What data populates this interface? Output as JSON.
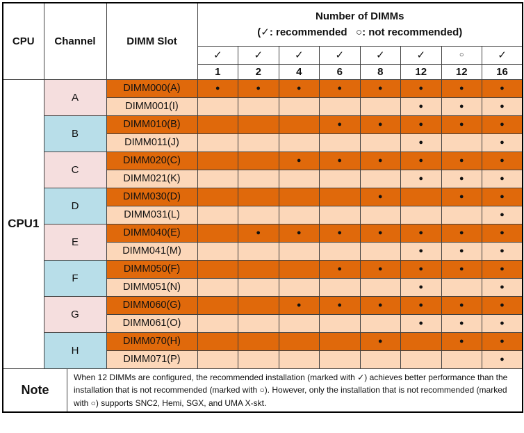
{
  "colors": {
    "dark_orange": "#E0690B",
    "light_orange": "#FCD7B9",
    "pink": "#F5DEDE",
    "blue": "#B8DEE9",
    "grid": "#404040",
    "outer_border": "#000000",
    "dot": "#111111"
  },
  "header": {
    "cpu": "CPU",
    "channel": "Channel",
    "dimm_slot": "DIMM Slot",
    "dimms_title": "Number of DIMMs",
    "dimms_subtitle": "(✓: recommended   ○: not recommended)",
    "marks": [
      "✓",
      "✓",
      "✓",
      "✓",
      "✓",
      "✓",
      "○",
      "✓"
    ],
    "counts": [
      "1",
      "2",
      "4",
      "6",
      "8",
      "12",
      "12",
      "16"
    ]
  },
  "body": {
    "cpu_label": "CPU1",
    "channels": [
      {
        "label": "A",
        "color": "pink",
        "slots": [
          {
            "name": "DIMM000(A)",
            "dots": [
              1,
              1,
              1,
              1,
              1,
              1,
              1,
              1
            ]
          },
          {
            "name": "DIMM001(I)",
            "dots": [
              0,
              0,
              0,
              0,
              0,
              1,
              1,
              1
            ]
          }
        ]
      },
      {
        "label": "B",
        "color": "blue",
        "slots": [
          {
            "name": "DIMM010(B)",
            "dots": [
              0,
              0,
              0,
              1,
              1,
              1,
              1,
              1
            ]
          },
          {
            "name": "DIMM011(J)",
            "dots": [
              0,
              0,
              0,
              0,
              0,
              1,
              0,
              1
            ]
          }
        ]
      },
      {
        "label": "C",
        "color": "pink",
        "slots": [
          {
            "name": "DIMM020(C)",
            "dots": [
              0,
              0,
              1,
              1,
              1,
              1,
              1,
              1
            ]
          },
          {
            "name": "DIMM021(K)",
            "dots": [
              0,
              0,
              0,
              0,
              0,
              1,
              1,
              1
            ]
          }
        ]
      },
      {
        "label": "D",
        "color": "blue",
        "slots": [
          {
            "name": "DIMM030(D)",
            "dots": [
              0,
              0,
              0,
              0,
              1,
              0,
              1,
              1
            ]
          },
          {
            "name": "DIMM031(L)",
            "dots": [
              0,
              0,
              0,
              0,
              0,
              0,
              0,
              1
            ]
          }
        ]
      },
      {
        "label": "E",
        "color": "pink",
        "slots": [
          {
            "name": "DIMM040(E)",
            "dots": [
              0,
              1,
              1,
              1,
              1,
              1,
              1,
              1
            ]
          },
          {
            "name": "DIMM041(M)",
            "dots": [
              0,
              0,
              0,
              0,
              0,
              1,
              1,
              1
            ]
          }
        ]
      },
      {
        "label": "F",
        "color": "blue",
        "slots": [
          {
            "name": "DIMM050(F)",
            "dots": [
              0,
              0,
              0,
              1,
              1,
              1,
              1,
              1
            ]
          },
          {
            "name": "DIMM051(N)",
            "dots": [
              0,
              0,
              0,
              0,
              0,
              1,
              0,
              1
            ]
          }
        ]
      },
      {
        "label": "G",
        "color": "pink",
        "slots": [
          {
            "name": "DIMM060(G)",
            "dots": [
              0,
              0,
              1,
              1,
              1,
              1,
              1,
              1
            ]
          },
          {
            "name": "DIMM061(O)",
            "dots": [
              0,
              0,
              0,
              0,
              0,
              1,
              1,
              1
            ]
          }
        ]
      },
      {
        "label": "H",
        "color": "blue",
        "slots": [
          {
            "name": "DIMM070(H)",
            "dots": [
              0,
              0,
              0,
              0,
              1,
              0,
              1,
              1
            ]
          },
          {
            "name": "DIMM071(P)",
            "dots": [
              0,
              0,
              0,
              0,
              0,
              0,
              0,
              1
            ]
          }
        ]
      }
    ]
  },
  "note": {
    "label": "Note",
    "text": "When 12 DIMMs are configured, the recommended installation (marked with ✓) achieves better performance than the installation that is not recommended (marked with ○). However, only the installation that is not recommended (marked with ○) supports SNC2, Hemi, SGX, and UMA X-skt."
  }
}
